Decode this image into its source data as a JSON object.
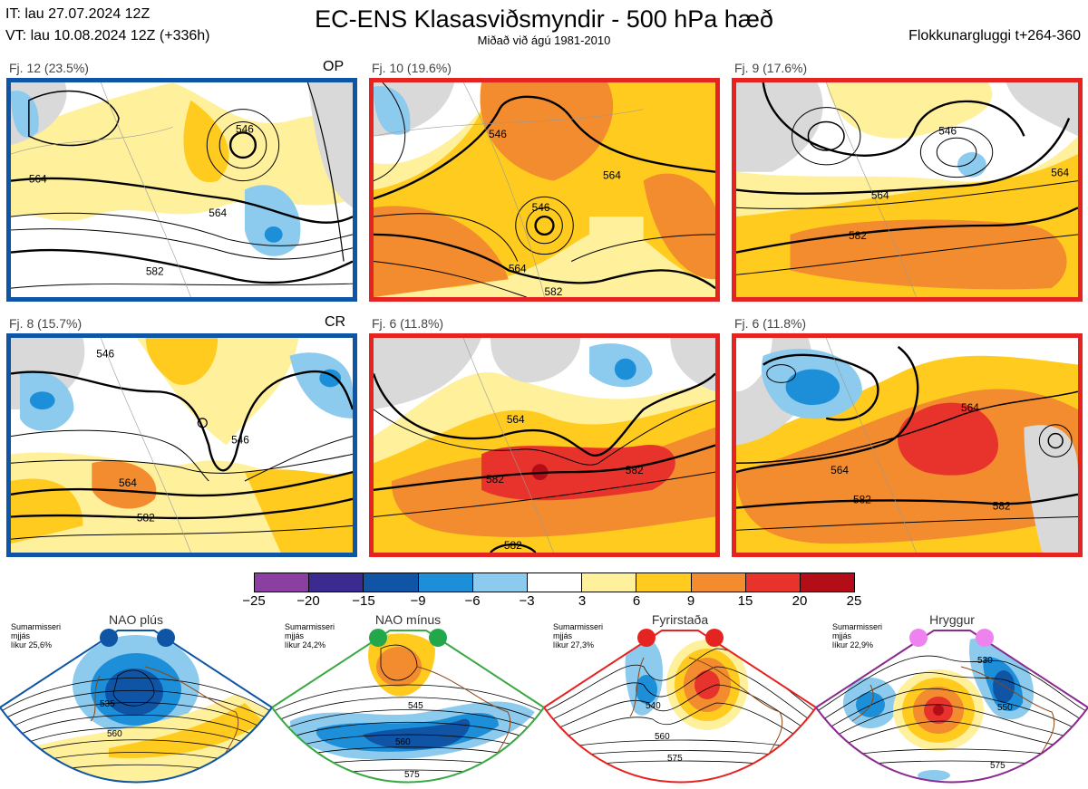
{
  "header": {
    "it": "IT: lau 27.07.2024 12Z",
    "vt": "VT: lau 10.08.2024 12Z  (+336h)",
    "title": "EC-ENS Klasasviðsmyndir - 500 hPa hæð",
    "subtitle": "Miðað við ágú 1981-2010",
    "window": "Flokkunargluggi t+264-360"
  },
  "panels": [
    {
      "label": "Fj. 12 (23.5%)",
      "tag": "OP",
      "contours": [
        "546",
        "564",
        "564",
        "582"
      ],
      "border": "#0e55a6"
    },
    {
      "label": "Fj. 10 (19.6%)",
      "tag": "",
      "contours": [
        "546",
        "564",
        "546",
        "564",
        "582"
      ],
      "border": "#e52320"
    },
    {
      "label": "Fj. 9 (17.6%)",
      "tag": "",
      "contours": [
        "546",
        "564",
        "582",
        "564"
      ],
      "border": "#e52320"
    },
    {
      "label": "Fj. 8 (15.7%)",
      "tag": "CR",
      "contours": [
        "546",
        "546",
        "564",
        "582"
      ],
      "border": "#0e55a6"
    },
    {
      "label": "Fj. 6 (11.8%)",
      "tag": "",
      "contours": [
        "564",
        "582",
        "582",
        "582"
      ],
      "border": "#e52320"
    },
    {
      "label": "Fj. 6 (11.8%)",
      "tag": "",
      "contours": [
        "564",
        "564",
        "582",
        "582"
      ],
      "border": "#e52320"
    }
  ],
  "colorbar": {
    "ticks": [
      "−25",
      "−20",
      "−15",
      "−9",
      "−6",
      "−3",
      "3",
      "6",
      "9",
      "15",
      "20",
      "25"
    ],
    "colors": [
      "#8b3fa0",
      "#3b2a8f",
      "#1054a6",
      "#1c8fd8",
      "#8ccaee",
      "#ffffff",
      "#fff09c",
      "#ffcb1e",
      "#f28c2e",
      "#e8332c",
      "#b30d18"
    ]
  },
  "regimes": [
    {
      "title": "NAO plús",
      "season": "Sumarmisseri",
      "smooth": "mjjás",
      "prob": "líkur 25,6%",
      "color": "#0e55a6",
      "dot": "#0e55a6",
      "contours": [
        "535",
        "560"
      ]
    },
    {
      "title": "NAO mínus",
      "season": "Sumarmisseri",
      "smooth": "mjjás",
      "prob": "líkur 24,2%",
      "color": "#3aa844",
      "dot": "#22a84a",
      "contours": [
        "545",
        "560",
        "575"
      ]
    },
    {
      "title": "Fyrirstaða",
      "season": "Sumarmisseri",
      "smooth": "mjjás",
      "prob": "líkur 27,3%",
      "color": "#e52320",
      "dot": "#e52320",
      "contours": [
        "540",
        "560",
        "575"
      ]
    },
    {
      "title": "Hryggur",
      "season": "Sumarmisseri",
      "smooth": "mjjás",
      "prob": "líkur 22,9%",
      "color": "#8b2a8f",
      "dot": "#ee82ee",
      "contours": [
        "530",
        "550",
        "575"
      ]
    }
  ]
}
